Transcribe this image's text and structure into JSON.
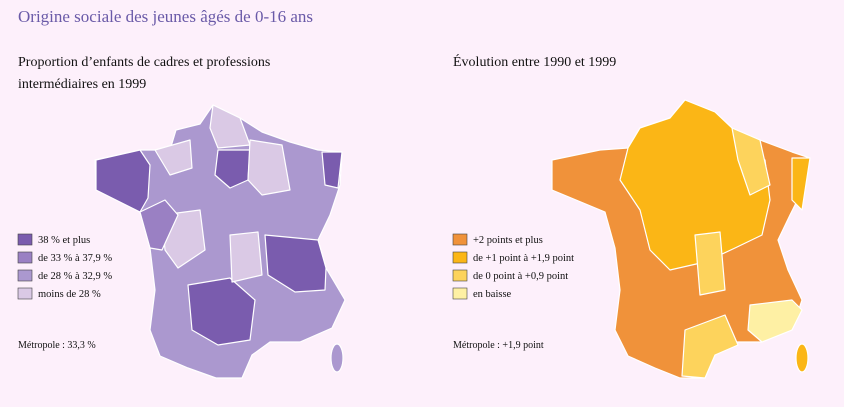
{
  "title": "Origine sociale des jeunes âgés de 0-16 ans",
  "maps": [
    {
      "title_lines": [
        "Proportion d’enfants de cadres et professions",
        "intermédiaires en 1999"
      ],
      "legend": [
        {
          "label": "38 % et plus",
          "color": "#7a5cae"
        },
        {
          "label": "de 33 % à 37,9 %",
          "color": "#9a80c3"
        },
        {
          "label": "de 28 % à 32,9 %",
          "color": "#ab98cf"
        },
        {
          "label": "moins de 28 %",
          "color": "#dac9e5"
        }
      ],
      "note": "Métropole : 33,3 %"
    },
    {
      "title_lines": [
        "Évolution entre 1990 et 1999"
      ],
      "legend": [
        {
          "label": "+2 points et plus",
          "color": "#f0923a"
        },
        {
          "label": "de +1 point à +1,9 point",
          "color": "#fbb616"
        },
        {
          "label": "de 0 point à +0,9 point",
          "color": "#fdd35c"
        },
        {
          "label": "en baisse",
          "color": "#fef0a4"
        }
      ],
      "note": "Métropole : +1,9 point"
    }
  ]
}
